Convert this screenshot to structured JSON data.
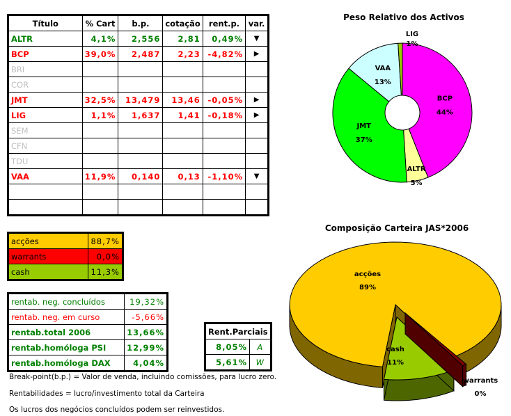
{
  "main_table": {
    "headers": [
      "Título",
      "% Cart",
      "b.p.",
      "cotação",
      "rent.p.",
      "var."
    ],
    "rows": [
      {
        "title": "ALTR",
        "pct": "4,1%",
        "bp": "2,556",
        "cot": "2,81",
        "rent": "0,49%",
        "var": "down-arrow-icon",
        "color": "green"
      },
      {
        "title": "BCP",
        "pct": "39,0%",
        "bp": "2,487",
        "cot": "2,23",
        "rent": "-4,82%",
        "var": "right-arrow-icon",
        "color": "red"
      },
      {
        "title": "BRI",
        "pct": "",
        "bp": "",
        "cot": "",
        "rent": "",
        "var": "",
        "color": "gray"
      },
      {
        "title": "COR",
        "pct": "",
        "bp": "",
        "cot": "",
        "rent": "",
        "var": "",
        "color": "gray"
      },
      {
        "title": "JMT",
        "pct": "32,5%",
        "bp": "13,479",
        "cot": "13,46",
        "rent": "-0,05%",
        "var": "right-arrow-icon",
        "color": "red"
      },
      {
        "title": "LIG",
        "pct": "1,1%",
        "bp": "1,637",
        "cot": "1,41",
        "rent": "-0,18%",
        "var": "right-arrow-icon",
        "color": "red"
      },
      {
        "title": "SEM",
        "pct": "",
        "bp": "",
        "cot": "",
        "rent": "",
        "var": "",
        "color": "gray"
      },
      {
        "title": "CFN",
        "pct": "",
        "bp": "",
        "cot": "",
        "rent": "",
        "var": "",
        "color": "gray"
      },
      {
        "title": "TDU",
        "pct": "",
        "bp": "",
        "cot": "",
        "rent": "",
        "var": "",
        "color": "gray"
      },
      {
        "title": "VAA",
        "pct": "11,9%",
        "bp": "0,140",
        "cot": "0,13",
        "rent": "-1,10%",
        "var": "down-arrow-icon",
        "color": "red"
      },
      {
        "title": "",
        "pct": "",
        "bp": "",
        "cot": "",
        "rent": "",
        "var": "",
        "color": "gray"
      },
      {
        "title": "",
        "pct": "",
        "bp": "",
        "cot": "",
        "rent": "",
        "var": "",
        "color": "gray"
      }
    ]
  },
  "allocation": [
    {
      "label": "acções",
      "value": "88,7%",
      "bg": "#ffcc00"
    },
    {
      "label": "warrants",
      "value": "0,0%",
      "bg": "#ff0000"
    },
    {
      "label": "cash",
      "value": "11,3%",
      "bg": "#99cc00"
    }
  ],
  "rentab": [
    {
      "label": "rentab. neg. concluídos",
      "value": "19,32%",
      "color": "green",
      "bold": false
    },
    {
      "label": "rentab. neg. em curso",
      "value": "-5,66%",
      "color": "red",
      "bold": false
    },
    {
      "label": "rentab.total 2006",
      "value": "13,66%",
      "color": "green",
      "bold": true
    },
    {
      "label": "rentab.homóloga PSI",
      "value": "12,99%",
      "color": "green",
      "bold": true
    },
    {
      "label": "rentab.homóloga DAX",
      "value": "4,04%",
      "color": "green",
      "bold": true
    }
  ],
  "parciais": {
    "header": "Rent.Parciais",
    "rows": [
      {
        "value": "8,05%",
        "tag": "A"
      },
      {
        "value": "5,61%",
        "tag": "W"
      }
    ]
  },
  "notes": [
    "Break-point(b.p.) = Valor de venda, incluindo comissões, para lucro zero.",
    "Rentabilidades = lucro/investimento total da Carteira",
    "Os lucros dos negócios concluídos podem ser reinvestidos."
  ],
  "chart_data": [
    {
      "type": "pie",
      "variant": "doughnut",
      "title": "Peso Relativo dos Activos",
      "categories": [
        "BCP",
        "ALTR",
        "JMT",
        "VAA",
        "LIG"
      ],
      "values": [
        44,
        5,
        37,
        13,
        1
      ],
      "labels": [
        "44%",
        "5%",
        "37%",
        "13%",
        "1%"
      ],
      "colors": [
        "#ff00ff",
        "#ffff99",
        "#00ff00",
        "#ccffff",
        "#99cc00"
      ]
    },
    {
      "type": "pie",
      "variant": "3d-exploded",
      "title": "Composição Carteira JAS*2006",
      "categories": [
        "acções",
        "cash",
        "warrants"
      ],
      "values": [
        89,
        11,
        0
      ],
      "labels": [
        "89%",
        "11%",
        "0%"
      ],
      "colors": [
        "#ffcc00",
        "#99cc00",
        "#800000"
      ]
    }
  ]
}
